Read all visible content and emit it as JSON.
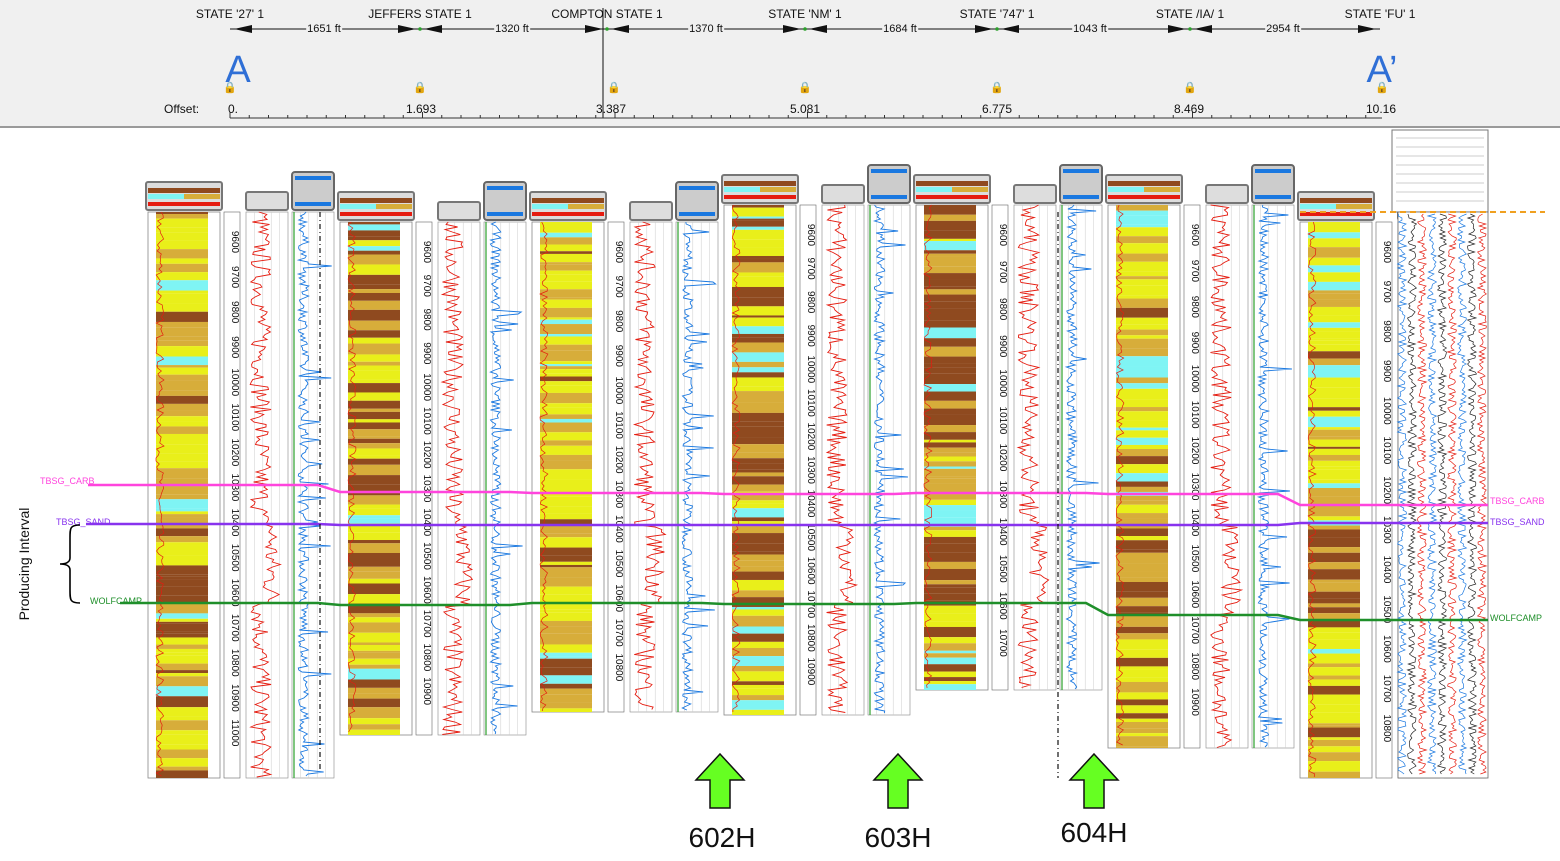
{
  "header": {
    "wells": [
      "STATE '27' 1",
      "JEFFERS STATE 1",
      "COMPTON STATE 1",
      "STATE 'NM' 1",
      "STATE '747' 1",
      "STATE /IA/ 1",
      "STATE 'FU' 1"
    ],
    "distances": [
      "1651 ft",
      "1320 ft",
      "1370 ft",
      "1684 ft",
      "1043 ft",
      "2954 ft"
    ],
    "offset_label": "Offset:",
    "offsets": [
      "0.",
      "1.693",
      "3.387",
      "5.081",
      "6.775",
      "8.469",
      "10.16"
    ],
    "section_start": "A",
    "section_end": "A’"
  },
  "horizons": {
    "carb": {
      "label": "TBSG_CARB",
      "color": "#ff44dd"
    },
    "sand": {
      "label": "TBSG_SAND",
      "color": "#8833ee"
    },
    "wolfcamp": {
      "label": "WOLFCAMP",
      "color": "#1f8f2a"
    }
  },
  "annotation": {
    "producing_interval": "Producing Interval"
  },
  "planned_wells": [
    {
      "label": "602H"
    },
    {
      "label": "603H"
    },
    {
      "label": "604H"
    }
  ],
  "logs": {
    "depths": [
      [
        "9600",
        "9700",
        "9800",
        "9900",
        "10000",
        "10100",
        "10200",
        "10300",
        "10400",
        "10500",
        "10600",
        "10700",
        "10800",
        "10900",
        "11000"
      ],
      [
        "9600",
        "9700",
        "9800",
        "9900",
        "10000",
        "10100",
        "10200",
        "10300",
        "10400",
        "10500",
        "10600",
        "10700",
        "10800",
        "10900"
      ],
      [
        "9600",
        "9700",
        "9800",
        "9900",
        "10000",
        "10100",
        "10200",
        "10300",
        "10400",
        "10500",
        "10600",
        "10700",
        "10800"
      ],
      [
        "9600",
        "9700",
        "9800",
        "9900",
        "10000",
        "10100",
        "10200",
        "10300",
        "10400",
        "10500",
        "10600",
        "10700",
        "10800",
        "10900"
      ],
      [
        "9600",
        "9700",
        "9800",
        "9900",
        "10000",
        "10100",
        "10200",
        "10300",
        "10400",
        "10500",
        "10600",
        "10700"
      ],
      [
        "9600",
        "9700",
        "9800",
        "9900",
        "10000",
        "10100",
        "10200",
        "10300",
        "10400",
        "10500",
        "10600",
        "10700",
        "10800",
        "10900"
      ],
      [
        "9600",
        "9700",
        "9800",
        "9900",
        "10000",
        "10100",
        "10200",
        "10300",
        "10400",
        "10500",
        "10600",
        "10700",
        "10800"
      ]
    ]
  },
  "colors": {
    "lith_yellow": "#e9ef1a",
    "lith_tan": "#d7ad3a",
    "lith_brown": "#8f4a1f",
    "lith_cyan": "#7ff4f4",
    "gr_curve": "#e51c10",
    "res_curve": "#1a78e0",
    "arrow_fill": "#66ff22",
    "section_blue": "#2f6fd6"
  }
}
